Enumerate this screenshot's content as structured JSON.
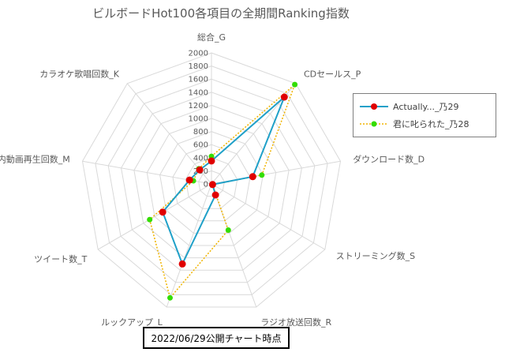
{
  "chart_data": {
    "type": "radar",
    "title": "ビルボードHot100各項目の全期間Ranking指数",
    "axes": [
      "総合_G",
      "CDセールス_P",
      "ダウンロード数_D",
      "ストリーミング数_S",
      "ラジオ放送回数_R",
      "ルックアップ_L",
      "ツイート数_T",
      "国内動画再生回数_M",
      "カラオケ歌唱回数_K"
    ],
    "ticks": [
      "0",
      "200",
      "400",
      "600",
      "800",
      "1000",
      "1200",
      "1400",
      "1600",
      "1800",
      "2000"
    ],
    "rmax": 2000,
    "series": [
      {
        "name": "Actually..._乃29",
        "values": [
          350,
          1730,
          640,
          20,
          180,
          1300,
          860,
          340,
          280
        ],
        "color": "#1fa0c8",
        "marker": "#e00000",
        "style": "solid"
      },
      {
        "name": "君に叱られた_乃28",
        "values": [
          420,
          1980,
          780,
          20,
          750,
          1850,
          1090,
          280,
          300
        ],
        "color": "#f0b400",
        "marker": "#33dd00",
        "style": "dotted"
      }
    ],
    "legend_position": "right"
  },
  "footnote": "2022/06/29公開チャート時点"
}
